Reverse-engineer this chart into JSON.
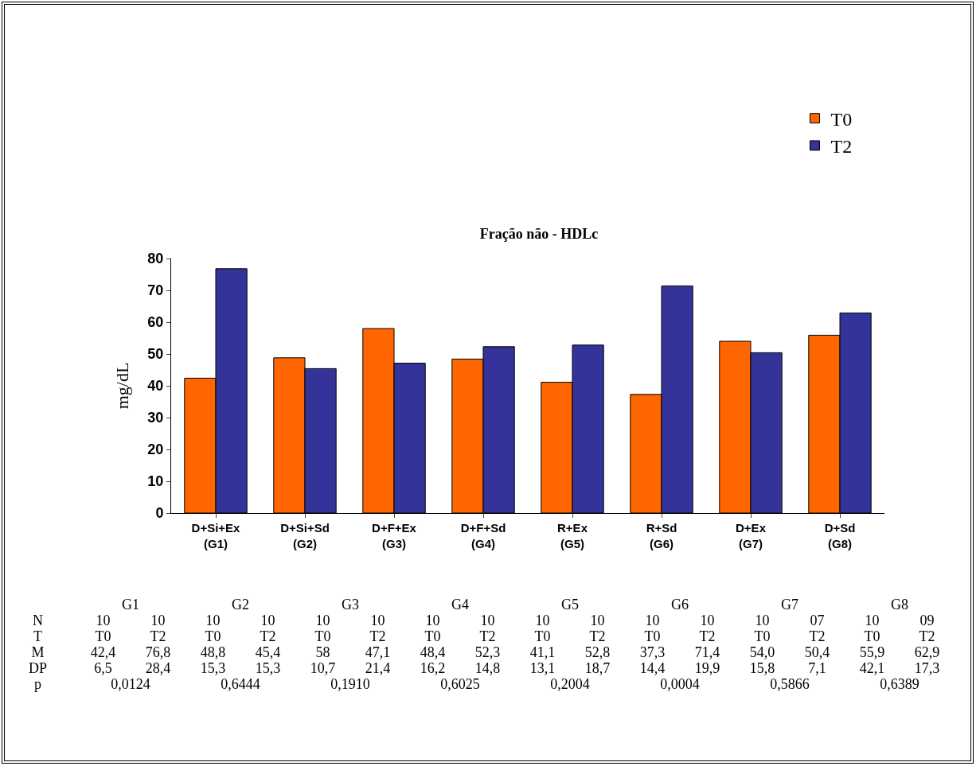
{
  "chart_data": {
    "type": "bar",
    "title": "Fração não - HDLc",
    "ylabel": "mg/dL",
    "categories": [
      "D+Si+Ex (G1)",
      "D+Si+Sd (G2)",
      "D+F+Ex (G3)",
      "D+F+Sd (G4)",
      "R+Ex (G5)",
      "R+Sd (G6)",
      "D+Ex (G7)",
      "D+Sd (G8)"
    ],
    "series": [
      {
        "name": "T0",
        "color": "#ff6600",
        "values": [
          42.4,
          48.8,
          58,
          48.4,
          41.1,
          37.3,
          54.0,
          55.9
        ]
      },
      {
        "name": "T2",
        "color": "#333399",
        "values": [
          76.8,
          45.4,
          47.1,
          52.3,
          52.8,
          71.4,
          50.4,
          62.9
        ]
      }
    ],
    "ylim": [
      0,
      80
    ],
    "yticks": [
      0,
      10,
      20,
      30,
      40,
      50,
      60,
      70,
      80
    ],
    "grid": false,
    "legend": "top right",
    "annotations": [
      "G1 G2 G3 G4 G5 G6 G7 G8",
      "N 10 10 10 10 10 10 10 10 10 10 10 10 10 07 10 09",
      "T T0 T2 T0 T2 T0 T2 T0 T2 T0 T2 T0 T2 T0 T2 T0 T2",
      "M 42,4 76,8 48,8 45,4 58 47,1 48,4 52,3 41,1 52,8 37,3 71,4 54,0 50,4 55,9 62,9",
      "DP 6,5 28,4 15,3 15,3 10,7 21,4 16,2 14,8 13,1 18,7 14,4 19,9 15,8 7,1 42,1 17,3",
      "p 0,0124 0,6444 0,1910 0,6025 0,2004 0,0004 0,5866 0,6389"
    ]
  }
}
